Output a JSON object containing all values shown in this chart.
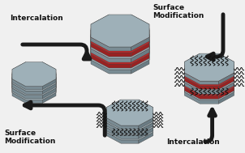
{
  "bg_color": "#f0f0f0",
  "hex_gray_top": "#9eb0b8",
  "hex_gray_side_r": "#6a7c84",
  "hex_gray_side_l": "#7a8c94",
  "hex_red_top": "#cc2222",
  "hex_red_side": "#992222",
  "hex_dark_side": "#555f63",
  "arrow_color": "#1a1a1a",
  "text_color": "#111111",
  "wavy_color": "#111111",
  "labels": {
    "top_left": "Intercalation",
    "top_right": "Surface\nModification",
    "bottom_left": "Surface\nModification",
    "bottom_right": "Intercalation"
  }
}
